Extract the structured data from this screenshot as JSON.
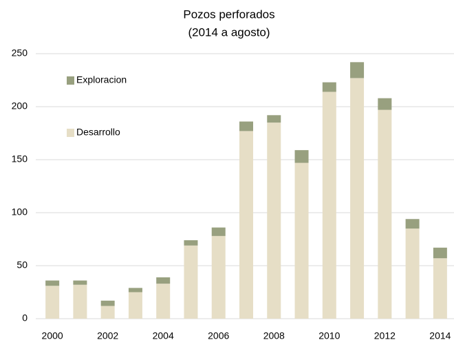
{
  "chart_data": {
    "type": "bar",
    "stacked": true,
    "title": "Pozos perforados",
    "subtitle": "(2014 a agosto)",
    "categories": [
      "2000",
      null,
      "2002",
      null,
      "2004",
      null,
      "2006",
      null,
      "2008",
      null,
      "2010",
      null,
      "2012",
      null,
      "2014"
    ],
    "series": [
      {
        "name": "Desarrollo",
        "color": "#e6dec6",
        "values": [
          31,
          32,
          12,
          25,
          33,
          69,
          78,
          177,
          185,
          147,
          214,
          227,
          197,
          85,
          57
        ]
      },
      {
        "name": "Exploracion",
        "color": "#98a07f",
        "values": [
          5,
          4,
          5,
          4,
          6,
          5,
          8,
          9,
          7,
          12,
          9,
          15,
          11,
          9,
          10
        ]
      }
    ],
    "ylim": [
      0,
      250
    ],
    "yticks": [
      0,
      50,
      100,
      150,
      200,
      250
    ],
    "grid": true,
    "legend": "upper left"
  }
}
